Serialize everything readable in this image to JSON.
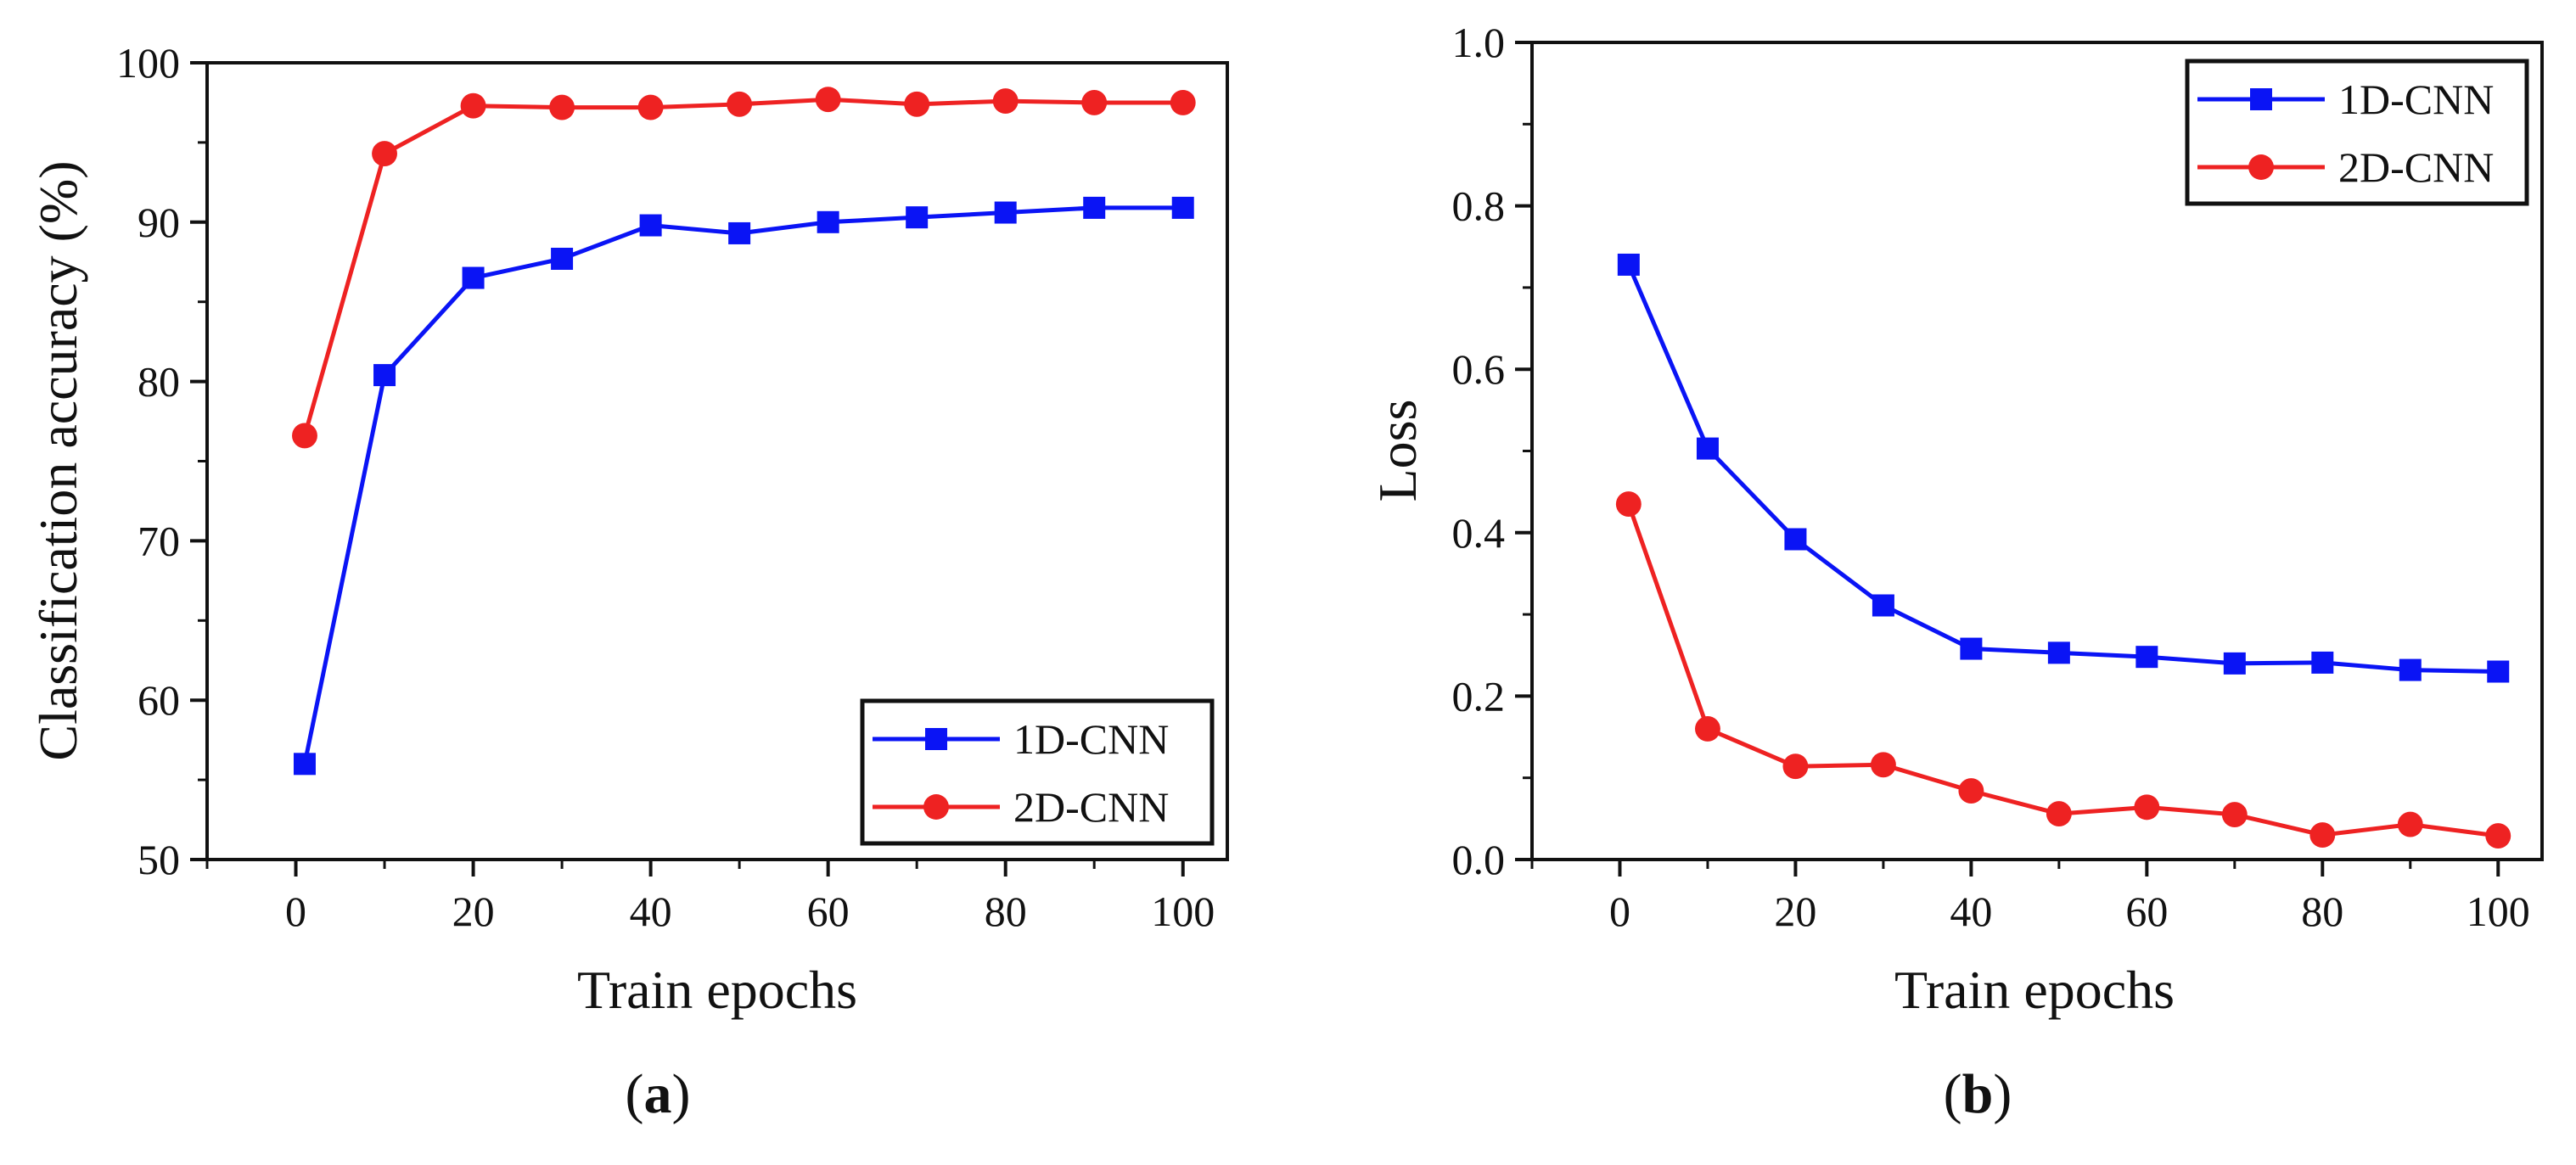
{
  "chart_data": [
    {
      "type": "line",
      "panel_label": "a",
      "xlabel": "Train epochs",
      "ylabel": "Classification accuracy (%)",
      "xlim": [
        -10,
        105
      ],
      "ylim": [
        50,
        100
      ],
      "xticks": [
        0,
        20,
        40,
        60,
        80,
        100
      ],
      "yticks": [
        50,
        60,
        70,
        80,
        90,
        100
      ],
      "grid": false,
      "legend_position": "bottom-right",
      "x": [
        1,
        10,
        20,
        30,
        40,
        50,
        60,
        70,
        80,
        90,
        100
      ],
      "series": [
        {
          "name": "1D-CNN",
          "color": "#0a14f5",
          "marker": "square",
          "values": [
            56.0,
            80.4,
            86.5,
            87.7,
            89.8,
            89.3,
            90.0,
            90.3,
            90.6,
            90.9,
            90.9
          ]
        },
        {
          "name": "2D-CNN",
          "color": "#ee2222",
          "marker": "circle",
          "values": [
            76.6,
            94.3,
            97.3,
            97.2,
            97.2,
            97.4,
            97.7,
            97.4,
            97.6,
            97.5,
            97.5
          ]
        }
      ]
    },
    {
      "type": "line",
      "panel_label": "b",
      "xlabel": "Train epochs",
      "ylabel": "Loss",
      "xlim": [
        -10,
        105
      ],
      "ylim": [
        0.0,
        1.0
      ],
      "xticks": [
        0,
        20,
        40,
        60,
        80,
        100
      ],
      "yticks": [
        0.0,
        0.2,
        0.4,
        0.6,
        0.8,
        1.0
      ],
      "grid": false,
      "legend_position": "top-right",
      "x": [
        1,
        10,
        20,
        30,
        40,
        50,
        60,
        70,
        80,
        90,
        100
      ],
      "series": [
        {
          "name": "1D-CNN",
          "color": "#0a14f5",
          "marker": "square",
          "values": [
            0.728,
            0.503,
            0.392,
            0.311,
            0.258,
            0.253,
            0.248,
            0.24,
            0.241,
            0.232,
            0.23
          ]
        },
        {
          "name": "2D-CNN",
          "color": "#ee2222",
          "marker": "circle",
          "values": [
            0.435,
            0.16,
            0.114,
            0.116,
            0.084,
            0.056,
            0.064,
            0.055,
            0.03,
            0.043,
            0.029
          ]
        }
      ]
    }
  ]
}
